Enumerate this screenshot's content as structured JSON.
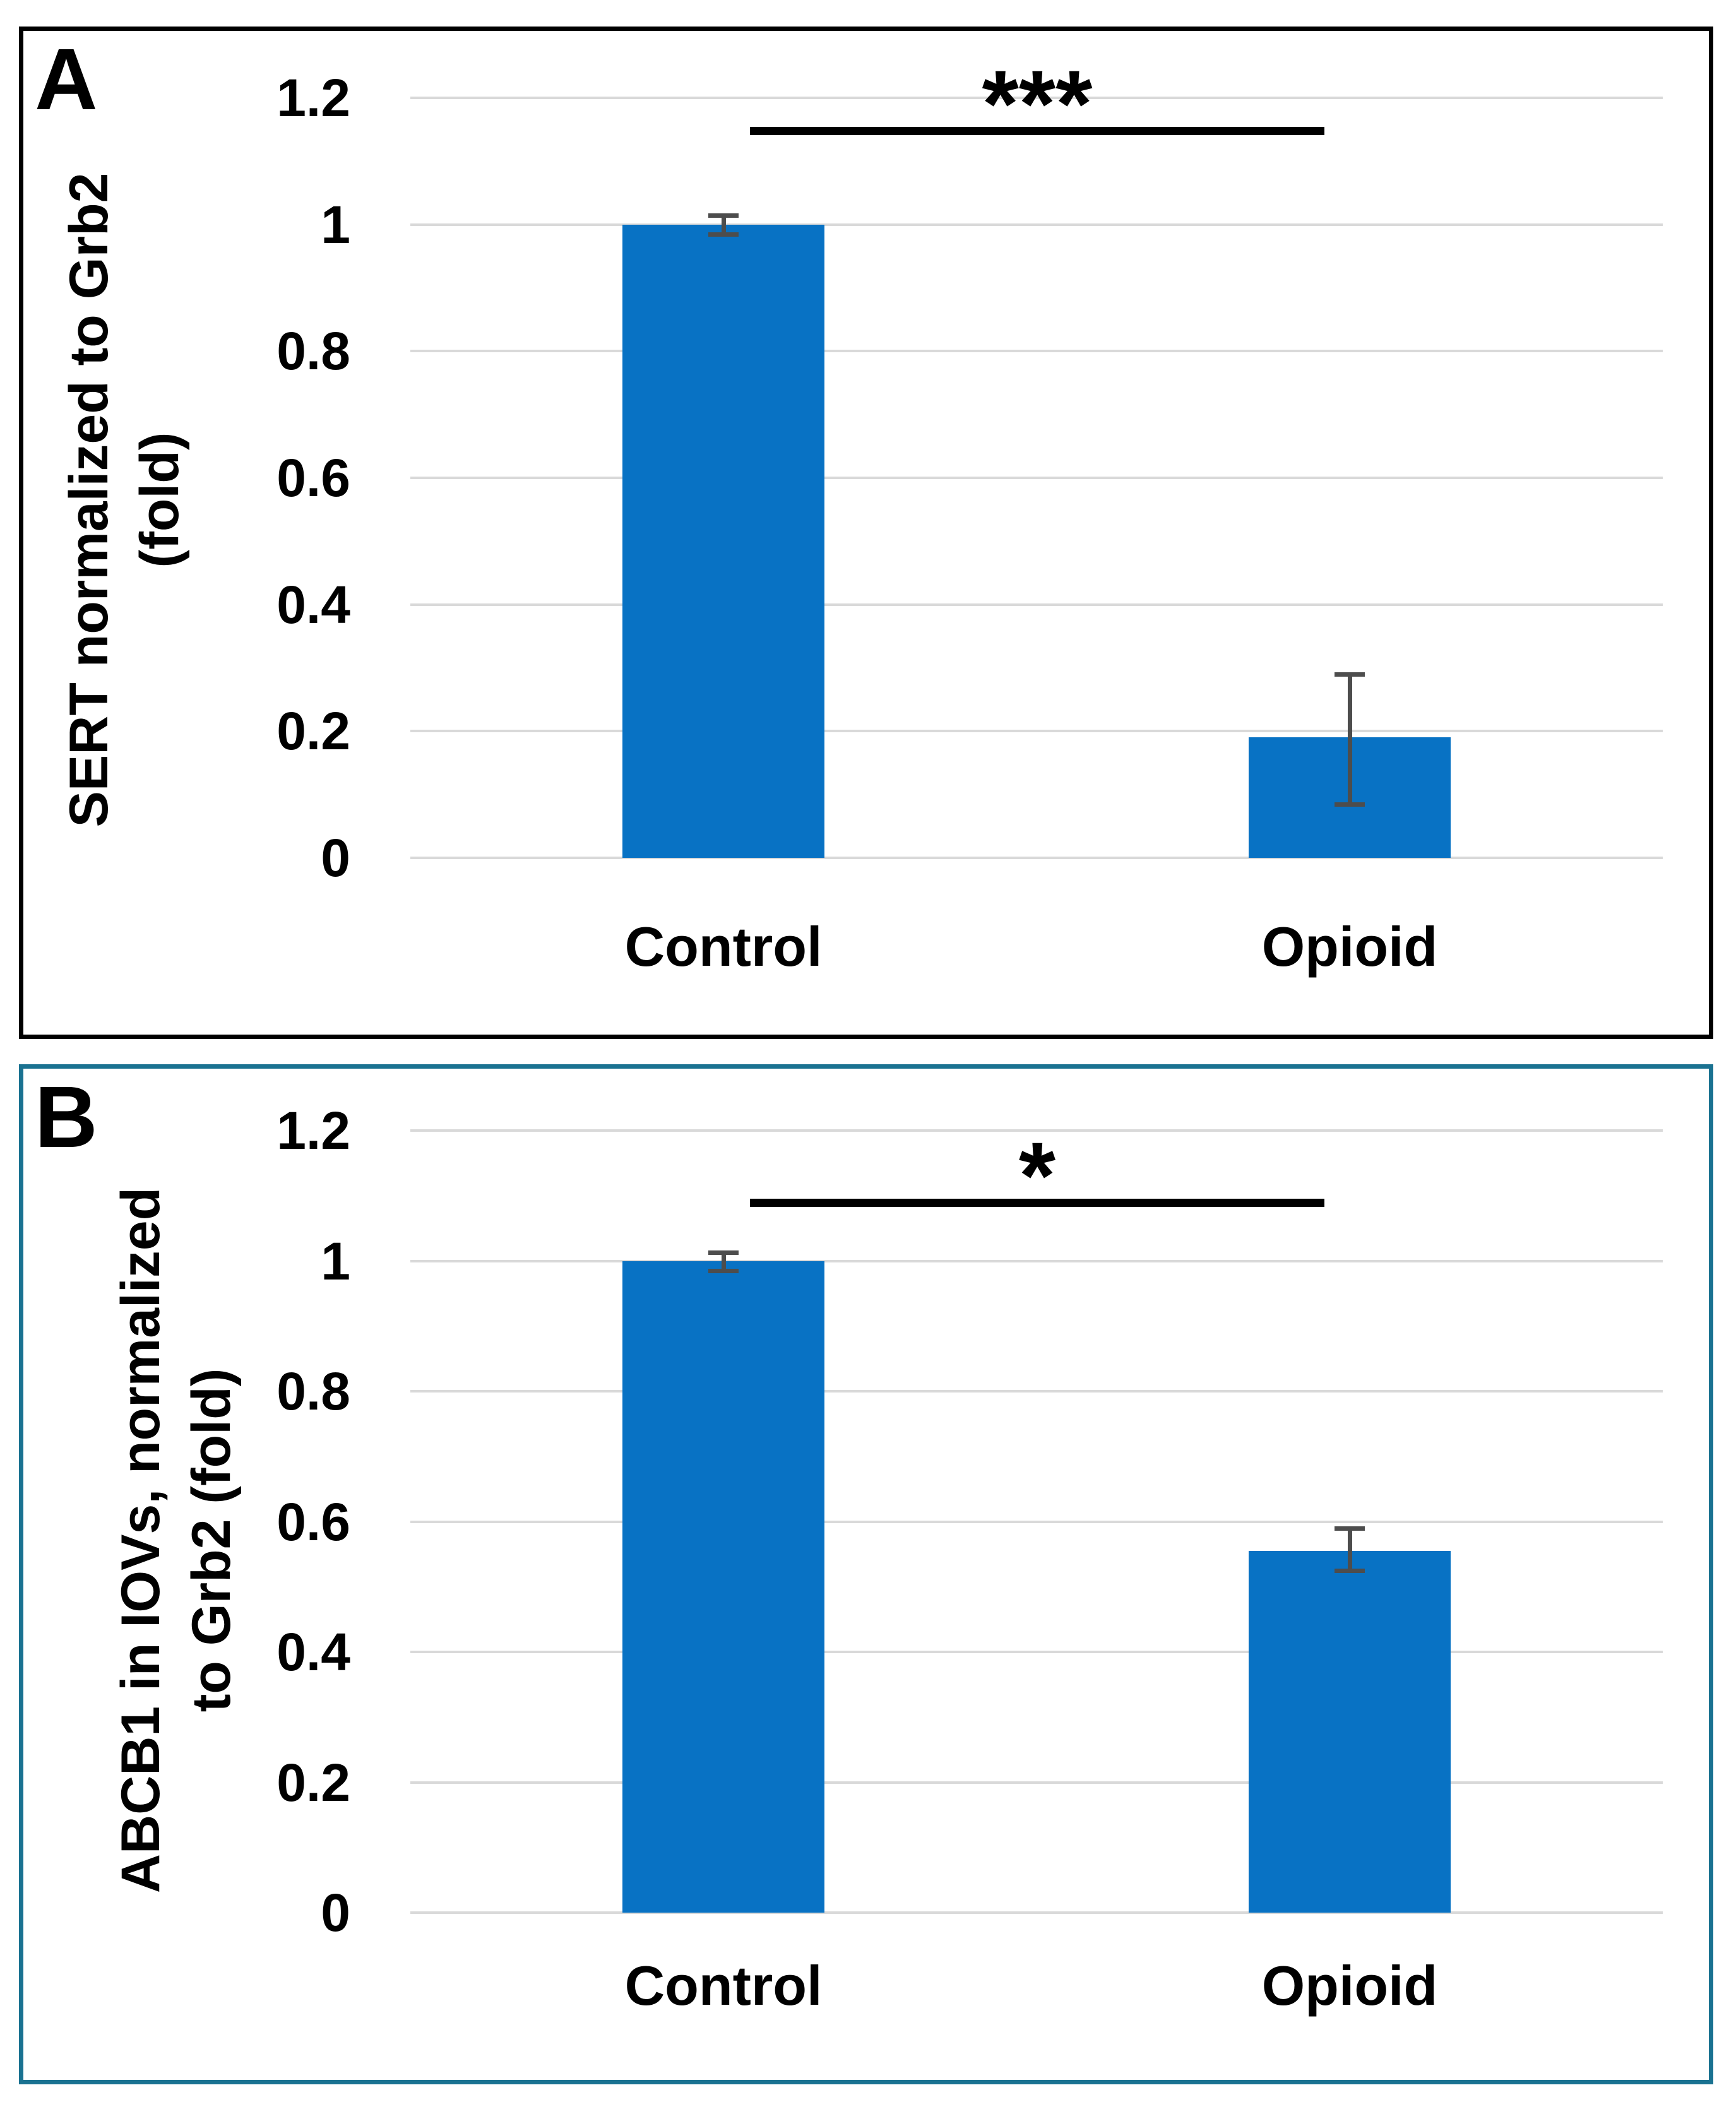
{
  "figure_title": "",
  "colors": {
    "bar": "#0872c4",
    "error_bar": "#4d4d4d",
    "gridline": "#d9d9d9",
    "significance_line": "#000000",
    "text": "#000000",
    "panel_a_border": "#000000",
    "panel_b_border": "#1a7291",
    "background": "#ffffff"
  },
  "chart_data": [
    {
      "type": "bar",
      "panel_label": "A",
      "ylabel_lines": [
        "SERT normalized to Grb2",
        "(fold)"
      ],
      "xlabel": "",
      "categories": [
        "Control",
        "Opioid"
      ],
      "values": [
        1.0,
        0.19
      ],
      "error_low": [
        0.985,
        0.085
      ],
      "error_high": [
        1.015,
        0.29
      ],
      "significance_label": "***",
      "significance_between": [
        "Control",
        "Opioid"
      ],
      "ylim": [
        0,
        1.2
      ],
      "y_ticks": [
        "1.2",
        "1",
        "0.8",
        "0.6",
        "0.4",
        "0.2",
        "0"
      ],
      "grid": "horizontal",
      "legend": "none",
      "bar_color": "#0872c4",
      "border_color": "#000000"
    },
    {
      "type": "bar",
      "panel_label": "B",
      "ylabel_lines": [
        "ABCB1 in IOVs, normalized",
        "to Grb2 (fold)"
      ],
      "xlabel": "",
      "categories": [
        "Control",
        "Opioid"
      ],
      "values": [
        1.0,
        0.555
      ],
      "error_low": [
        0.985,
        0.525
      ],
      "error_high": [
        1.013,
        0.59
      ],
      "significance_label": "*",
      "significance_between": [
        "Control",
        "Opioid"
      ],
      "ylim": [
        0,
        1.2
      ],
      "y_ticks": [
        "1.2",
        "1",
        "0.8",
        "0.6",
        "0.4",
        "0.2",
        "0"
      ],
      "grid": "horizontal",
      "legend": "none",
      "bar_color": "#0872c4",
      "border_color": "#1a7291"
    }
  ]
}
